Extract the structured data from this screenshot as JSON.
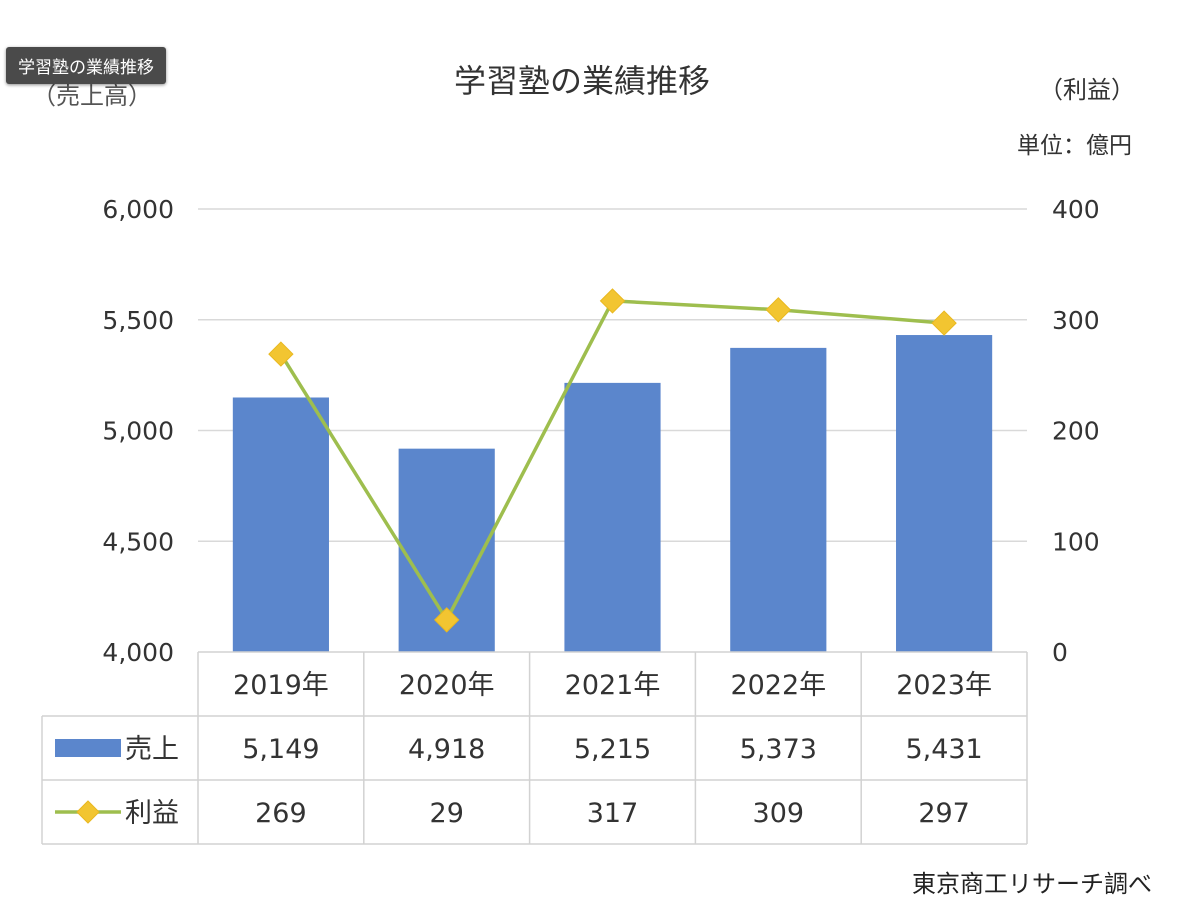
{
  "tooltip": "学習塾の業績推移",
  "chart_data": {
    "type": "bar",
    "title": "学習塾の業績推移",
    "left_axis_label": "（売上高）",
    "right_axis_label": "（利益）",
    "unit": "単位：億円",
    "source": "東京商工リサーチ調べ",
    "categories": [
      "2019年",
      "2020年",
      "2021年",
      "2022年",
      "2023年"
    ],
    "y_left": {
      "min": 4000,
      "max": 6000,
      "ticks": [
        "4,000",
        "4,500",
        "5,000",
        "5,500",
        "6,000"
      ]
    },
    "y_right": {
      "min": 0,
      "max": 400,
      "ticks": [
        "0",
        "100",
        "200",
        "300",
        "400"
      ]
    },
    "grid": true,
    "legend": "table-below",
    "series": [
      {
        "name": "売上",
        "type": "bar",
        "axis": "left",
        "color": "#5b86cc",
        "values": [
          5149,
          4918,
          5215,
          5373,
          5431
        ],
        "labels": [
          "5,149",
          "4,918",
          "5,215",
          "5,373",
          "5,431"
        ]
      },
      {
        "name": "利益",
        "type": "line",
        "axis": "right",
        "color": "#9ebe4e",
        "marker_color": "#f2c531",
        "values": [
          269,
          29,
          317,
          309,
          297
        ],
        "labels": [
          "269",
          "29",
          "317",
          "309",
          "297"
        ]
      }
    ]
  }
}
